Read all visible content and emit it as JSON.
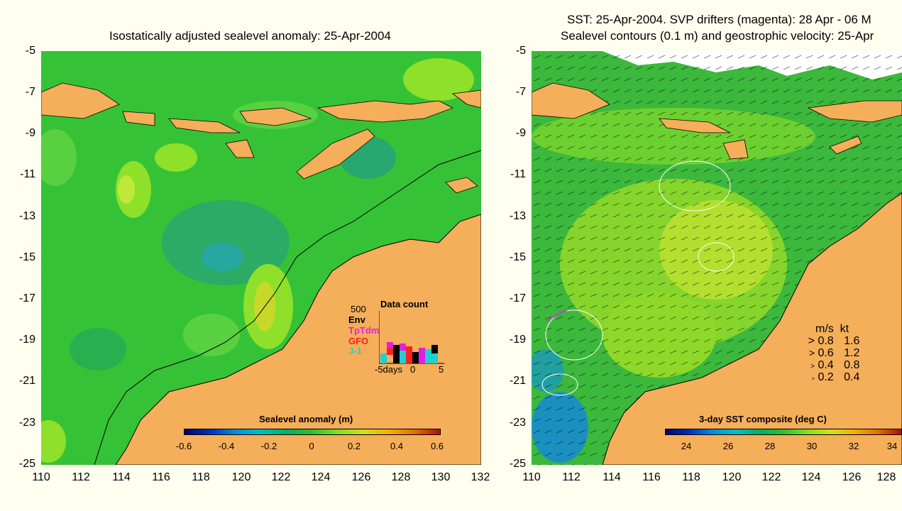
{
  "left_panel": {
    "title": "Isostatically adjusted sealevel anomaly: 25-Apr-2004",
    "y_ticks": [
      "-5",
      "-7",
      "-9",
      "-11",
      "-13",
      "-15",
      "-17",
      "-19",
      "-21",
      "-23",
      "-25"
    ],
    "x_ticks": [
      "110",
      "112",
      "114",
      "116",
      "118",
      "120",
      "122",
      "124",
      "126",
      "128",
      "130",
      "132"
    ],
    "colorbar": {
      "title": "Sealevel anomaly (m)",
      "ticks": [
        "-0.6",
        "-0.4",
        "-0.2",
        "0",
        "0.2",
        "0.4",
        "0.6"
      ]
    },
    "data_count": {
      "title": "Data count",
      "scale_label": "500",
      "missions": [
        {
          "name": "Env",
          "color": "#000000"
        },
        {
          "name": "TpTdm",
          "color": "#e020e0"
        },
        {
          "name": "GFO",
          "color": "#ff2020"
        },
        {
          "name": "J-1",
          "color": "#20d0d0"
        }
      ],
      "x_labels": [
        "-5days",
        "0",
        "5"
      ]
    }
  },
  "right_panel": {
    "title_line1": "SST: 25-Apr-2004. SVP drifters (magenta): 28 Apr - 06 M",
    "title_line2": "Sealevel contours (0.1 m) and geostrophic velocity: 25-Apr",
    "y_ticks": [
      "-5",
      "-7",
      "-9",
      "-11",
      "-13",
      "-15",
      "-17",
      "-19",
      "-21",
      "-23",
      "-25"
    ],
    "x_ticks": [
      "110",
      "112",
      "114",
      "116",
      "118",
      "120",
      "122",
      "124",
      "126",
      "128"
    ],
    "colorbar": {
      "title": "3-day SST composite (deg C)",
      "ticks": [
        "24",
        "26",
        "28",
        "30",
        "32",
        "34"
      ]
    },
    "velocity_legend": {
      "header": "m/s  kt",
      "rows": [
        {
          "ms": "0.8",
          "kt": "1.6"
        },
        {
          "ms": "0.6",
          "kt": "1.2"
        },
        {
          "ms": "0.4",
          "kt": "0.8"
        },
        {
          "ms": "0.2",
          "kt": "0.4"
        }
      ]
    }
  },
  "colors": {
    "land": "#f5ae5a",
    "ocean_base": "#2fbf2f",
    "background": "#fffff0"
  }
}
